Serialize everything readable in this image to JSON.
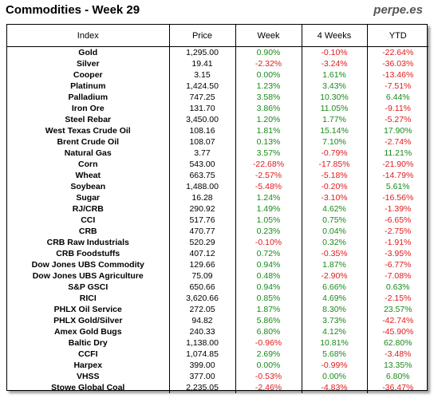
{
  "title": "Commodities - Week 29",
  "brand": "perpe.es",
  "headers": [
    "Index",
    "Price",
    "Week",
    "4 Weeks",
    "YTD"
  ],
  "colors": {
    "positive": "#1a8a1a",
    "negative": "#e01b1b"
  },
  "rows": [
    [
      "Gold",
      "1,295.00",
      "0.90%",
      "-0.10%",
      "-22.64%"
    ],
    [
      "Silver",
      "19.41",
      "-2.32%",
      "-3.24%",
      "-36.03%"
    ],
    [
      "Cooper",
      "3.15",
      "0.00%",
      "1.61%",
      "-13.46%"
    ],
    [
      "Platinum",
      "1,424.50",
      "1.23%",
      "3.43%",
      "-7.51%"
    ],
    [
      "Palladium",
      "747.25",
      "3.58%",
      "10.30%",
      "6.44%"
    ],
    [
      "Iron Ore",
      "131.70",
      "3.86%",
      "11.05%",
      "-9.11%"
    ],
    [
      "Steel Rebar",
      "3,450.00",
      "1.20%",
      "1.77%",
      "-5.27%"
    ],
    [
      "West Texas Crude Oil",
      "108.16",
      "1.81%",
      "15.14%",
      "17.90%"
    ],
    [
      "Brent Crude Oil",
      "108.07",
      "0.13%",
      "7.10%",
      "-2.74%"
    ],
    [
      "Natural Gas",
      "3.77",
      "3.57%",
      "-0.79%",
      "11.21%"
    ],
    [
      "Corn",
      "543.00",
      "-22.68%",
      "-17.85%",
      "-21.90%"
    ],
    [
      "Wheat",
      "663.75",
      "-2.57%",
      "-5.18%",
      "-14.79%"
    ],
    [
      "Soybean",
      "1,488.00",
      "-5.48%",
      "-0.20%",
      "5.61%"
    ],
    [
      "Sugar",
      "16.28",
      "1.24%",
      "-3.10%",
      "-16.56%"
    ],
    [
      "RJ/CRB",
      "290.92",
      "1.49%",
      "4.62%",
      "-1.39%"
    ],
    [
      "CCI",
      "517.76",
      "1.05%",
      "0.75%",
      "-6.65%"
    ],
    [
      "CRB",
      "470.77",
      "0.23%",
      "0.04%",
      "-2.75%"
    ],
    [
      "CRB Raw Industrials",
      "520.29",
      "-0.10%",
      "0.32%",
      "-1.91%"
    ],
    [
      "CRB Foodstuffs",
      "407.12",
      "0.72%",
      "-0.35%",
      "-3.95%"
    ],
    [
      "Dow Jones UBS Commodity",
      "129.66",
      "0.94%",
      "1.87%",
      "-6.77%"
    ],
    [
      "Dow Jones UBS Agriculture",
      "75.09",
      "0.48%",
      "-2.90%",
      "-7.08%"
    ],
    [
      "S&P GSCI",
      "650.66",
      "0.94%",
      "6.66%",
      "0.63%"
    ],
    [
      "RICI",
      "3,620.66",
      "0.85%",
      "4.69%",
      "-2.15%"
    ],
    [
      "PHLX Oil Service",
      "272.05",
      "1.87%",
      "8.30%",
      "23.57%"
    ],
    [
      "PHLX Gold/Silver",
      "94.82",
      "5.86%",
      "3.73%",
      "-42.74%"
    ],
    [
      "Amex Gold Bugs",
      "240.33",
      "6.80%",
      "4.12%",
      "-45.90%"
    ],
    [
      "Baltic Dry",
      "1,138.00",
      "-0.96%",
      "10.81%",
      "62.80%"
    ],
    [
      "CCFI",
      "1,074.85",
      "2.69%",
      "5.68%",
      "-3.48%"
    ],
    [
      "Harpex",
      "399.00",
      "0.00%",
      "-0.99%",
      "13.35%"
    ],
    [
      "VHSS",
      "377.00",
      "-0.53%",
      "0.00%",
      "6.80%"
    ],
    [
      "Stowe Global Coal",
      "2,235.05",
      "-2.46%",
      "-4.83%",
      "-36.47%"
    ]
  ]
}
